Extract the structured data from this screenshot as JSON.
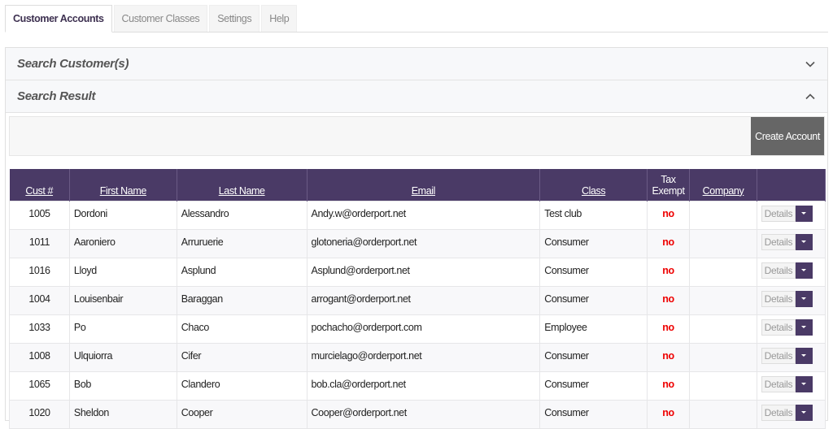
{
  "tabs": [
    {
      "label": "Customer Accounts",
      "active": true
    },
    {
      "label": "Customer Classes"
    },
    {
      "label": "Settings"
    },
    {
      "label": "Help"
    }
  ],
  "panels": {
    "search": "Search Customer(s)",
    "result": "Search Result"
  },
  "toolbar": {
    "create_label": "Create Account"
  },
  "colors": {
    "header": "#4a3a66",
    "no": "#e00000",
    "button": "#666666"
  },
  "table": {
    "headers": [
      "Cust #",
      "First Name",
      "Last Name",
      "Email",
      "Class",
      "Tax Exempt",
      "Company",
      ""
    ],
    "details_label": "Details",
    "rows": [
      [
        "1005",
        "Dordoni",
        "Alessandro",
        "Andy.w@orderport.net",
        "Test club",
        "no",
        ""
      ],
      [
        "1011",
        "Aaroniero",
        "Arruruerie",
        "glotoneria@orderport.net",
        "Consumer",
        "no",
        ""
      ],
      [
        "1016",
        "Lloyd",
        "Asplund",
        "Asplund@orderport.net",
        "Consumer",
        "no",
        ""
      ],
      [
        "1004",
        "Louisenbair",
        "Baraggan",
        "arrogant@orderport.net",
        "Consumer",
        "no",
        ""
      ],
      [
        "1033",
        "Po",
        "Chaco",
        "pochacho@orderport.com",
        "Employee",
        "no",
        ""
      ],
      [
        "1008",
        "Ulquiorra",
        "Cifer",
        "murcielago@orderport.net",
        "Consumer",
        "no",
        ""
      ],
      [
        "1065",
        "Bob",
        "Clandero",
        "bob.cla@orderport.net",
        "Consumer",
        "no",
        ""
      ],
      [
        "1020",
        "Sheldon",
        "Cooper",
        "Cooper@orderport.net",
        "Consumer",
        "no",
        ""
      ]
    ]
  }
}
